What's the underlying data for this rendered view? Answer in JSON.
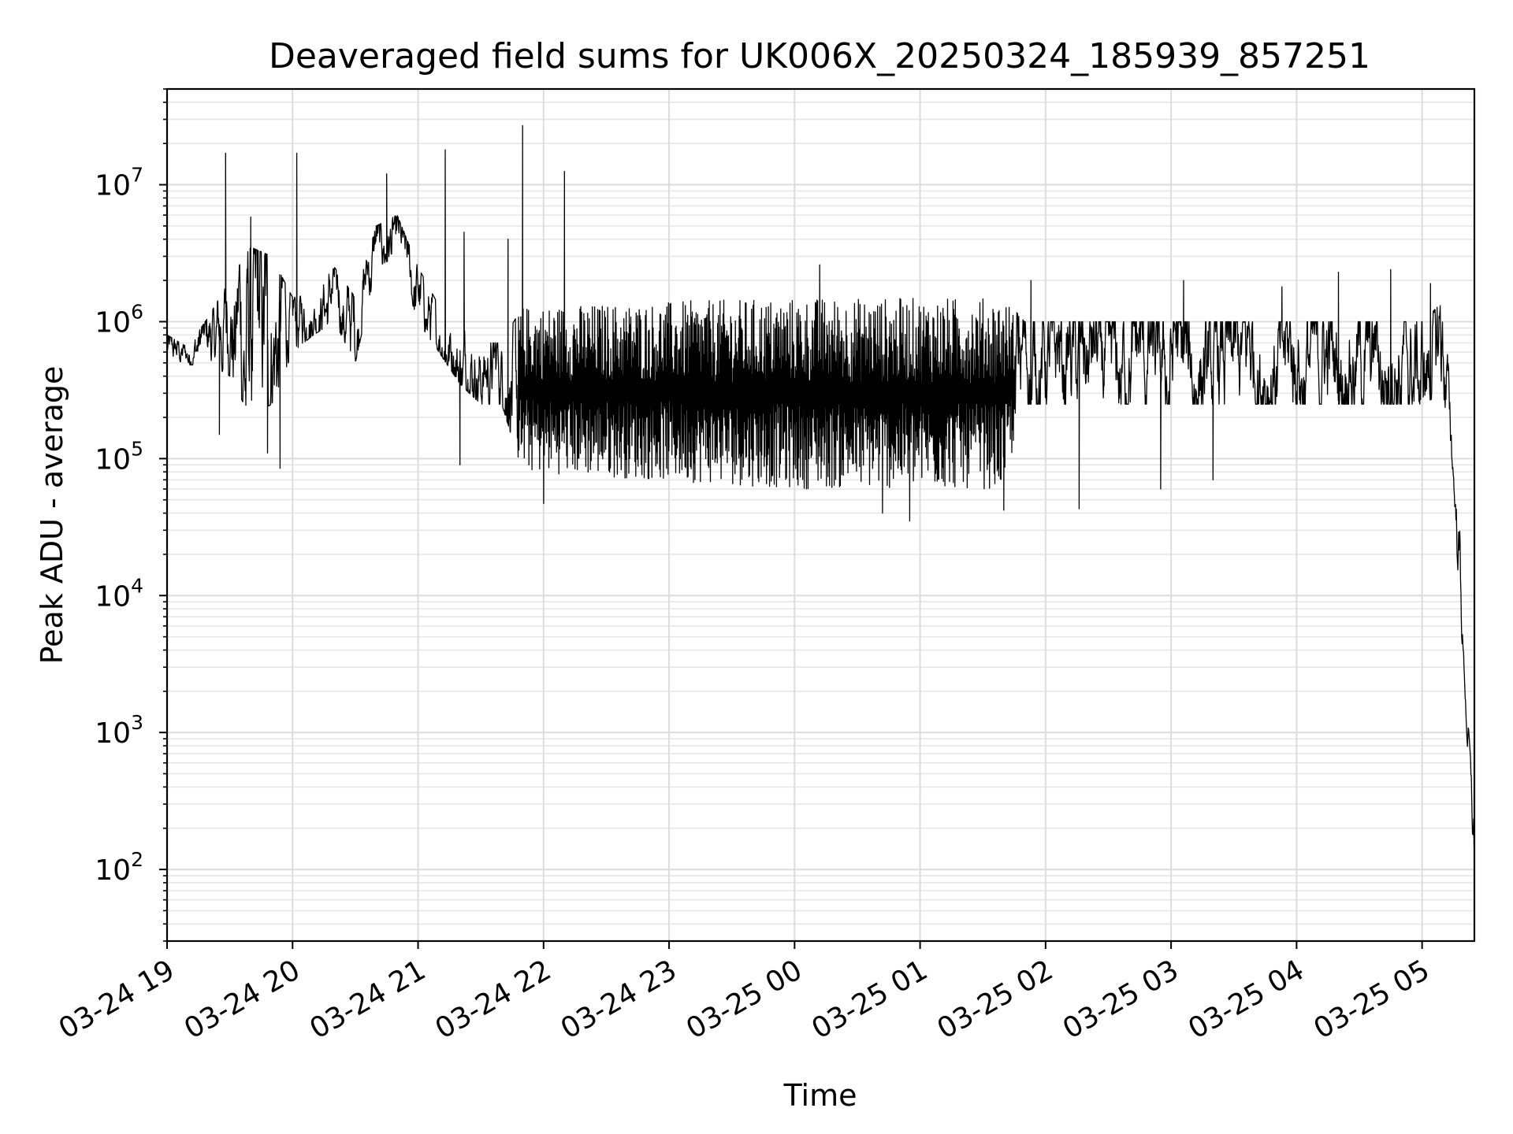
{
  "chart_data": {
    "type": "line",
    "title": "Deaveraged field sums for UK006X_20250324_185939_857251",
    "xlabel": "Time",
    "ylabel": "Peak ADU - average",
    "xlim": [
      "03-24 19:00",
      "03-25 05:25"
    ],
    "ylim": [
      30,
      50000000
    ],
    "yscale": "log",
    "grid": true,
    "grid_minor": true,
    "line_color": "#000000",
    "x_ticks": [
      {
        "label": "03-24 19",
        "hours": 0
      },
      {
        "label": "03-24 20",
        "hours": 1
      },
      {
        "label": "03-24 21",
        "hours": 2
      },
      {
        "label": "03-24 22",
        "hours": 3
      },
      {
        "label": "03-24 23",
        "hours": 4
      },
      {
        "label": "03-25 00",
        "hours": 5
      },
      {
        "label": "03-25 01",
        "hours": 6
      },
      {
        "label": "03-25 02",
        "hours": 7
      },
      {
        "label": "03-25 03",
        "hours": 8
      },
      {
        "label": "03-25 04",
        "hours": 9
      },
      {
        "label": "03-25 05",
        "hours": 10
      }
    ],
    "y_ticks": [
      {
        "base": "10",
        "exp": "2",
        "value": 100
      },
      {
        "base": "10",
        "exp": "3",
        "value": 1000
      },
      {
        "base": "10",
        "exp": "4",
        "value": 10000
      },
      {
        "base": "10",
        "exp": "5",
        "value": 100000
      },
      {
        "base": "10",
        "exp": "6",
        "value": 1000000
      },
      {
        "base": "10",
        "exp": "7",
        "value": 10000000
      }
    ],
    "series": [
      {
        "envelope": [
          {
            "t": "03-24 19:00",
            "low": 500000,
            "high": 800000
          },
          {
            "t": "03-24 19:10",
            "low": 480000,
            "high": 650000
          },
          {
            "t": "03-24 19:20",
            "low": 500000,
            "high": 1100000
          },
          {
            "t": "03-24 19:30",
            "low": 400000,
            "high": 2000000
          },
          {
            "t": "03-24 19:40",
            "low": 200000,
            "high": 3500000
          },
          {
            "t": "03-24 19:50",
            "low": 250000,
            "high": 3000000
          },
          {
            "t": "03-24 20:00",
            "low": 600000,
            "high": 1500000
          },
          {
            "t": "03-24 20:10",
            "low": 800000,
            "high": 1600000
          },
          {
            "t": "03-24 20:20",
            "low": 1000000,
            "high": 2500000
          },
          {
            "t": "03-24 20:30",
            "low": 500000,
            "high": 1500000
          },
          {
            "t": "03-24 20:40",
            "low": 2500000,
            "high": 5000000
          },
          {
            "t": "03-24 20:50",
            "low": 3000000,
            "high": 6000000
          },
          {
            "t": "03-24 21:00",
            "low": 1000000,
            "high": 2500000
          },
          {
            "t": "03-24 21:10",
            "low": 600000,
            "high": 1300000
          },
          {
            "t": "03-24 21:20",
            "low": 350000,
            "high": 900000
          },
          {
            "t": "03-24 21:30",
            "low": 250000,
            "high": 700000
          },
          {
            "t": "03-24 21:40",
            "low": 250000,
            "high": 700000
          },
          {
            "t": "03-24 21:50",
            "low": 80000,
            "high": 1300000
          },
          {
            "t": "03-25 00:00",
            "low": 60000,
            "high": 1500000
          },
          {
            "t": "03-25 01:40",
            "low": 60000,
            "high": 1500000
          },
          {
            "t": "03-25 01:50",
            "low": 250000,
            "high": 1000000
          },
          {
            "t": "03-25 05:00",
            "low": 250000,
            "high": 1000000
          },
          {
            "t": "03-25 05:10",
            "low": 300000,
            "high": 1400000
          },
          {
            "t": "03-25 05:13",
            "low": 150000,
            "high": 400000
          },
          {
            "t": "03-25 05:15",
            "low": 70000,
            "high": 100000
          },
          {
            "t": "03-25 05:18",
            "low": 8000,
            "high": 30000
          },
          {
            "t": "03-25 05:20",
            "low": 2800,
            "high": 3500
          },
          {
            "t": "03-25 05:22",
            "low": 600,
            "high": 1200
          },
          {
            "t": "03-25 05:25",
            "low": 90,
            "high": 250
          }
        ],
        "peaks": [
          {
            "t": "03-24 19:28",
            "value": 17000000
          },
          {
            "t": "03-24 19:40",
            "value": 5800000
          },
          {
            "t": "03-24 20:02",
            "value": 17000000
          },
          {
            "t": "03-24 20:45",
            "value": 12000000
          },
          {
            "t": "03-24 21:13",
            "value": 18000000
          },
          {
            "t": "03-24 21:22",
            "value": 4500000
          },
          {
            "t": "03-24 21:43",
            "value": 4000000
          },
          {
            "t": "03-24 21:50",
            "value": 27000000
          },
          {
            "t": "03-24 22:10",
            "value": 12500000
          },
          {
            "t": "03-25 00:12",
            "value": 2600000
          },
          {
            "t": "03-25 01:53",
            "value": 2000000
          },
          {
            "t": "03-25 03:06",
            "value": 2000000
          },
          {
            "t": "03-25 03:53",
            "value": 1800000
          },
          {
            "t": "03-25 04:20",
            "value": 2300000
          },
          {
            "t": "03-25 04:45",
            "value": 2400000
          },
          {
            "t": "03-25 05:04",
            "value": 1900000
          }
        ],
        "dips": [
          {
            "t": "03-24 19:25",
            "value": 150000
          },
          {
            "t": "03-24 19:48",
            "value": 110000
          },
          {
            "t": "03-24 19:54",
            "value": 85000
          },
          {
            "t": "03-24 21:20",
            "value": 90000
          },
          {
            "t": "03-24 22:00",
            "value": 47000
          },
          {
            "t": "03-25 00:42",
            "value": 40000
          },
          {
            "t": "03-25 00:55",
            "value": 35000
          },
          {
            "t": "03-25 01:40",
            "value": 42000
          },
          {
            "t": "03-25 02:16",
            "value": 43000
          },
          {
            "t": "03-25 02:55",
            "value": 60000
          },
          {
            "t": "03-25 03:20",
            "value": 70000
          }
        ]
      }
    ]
  }
}
